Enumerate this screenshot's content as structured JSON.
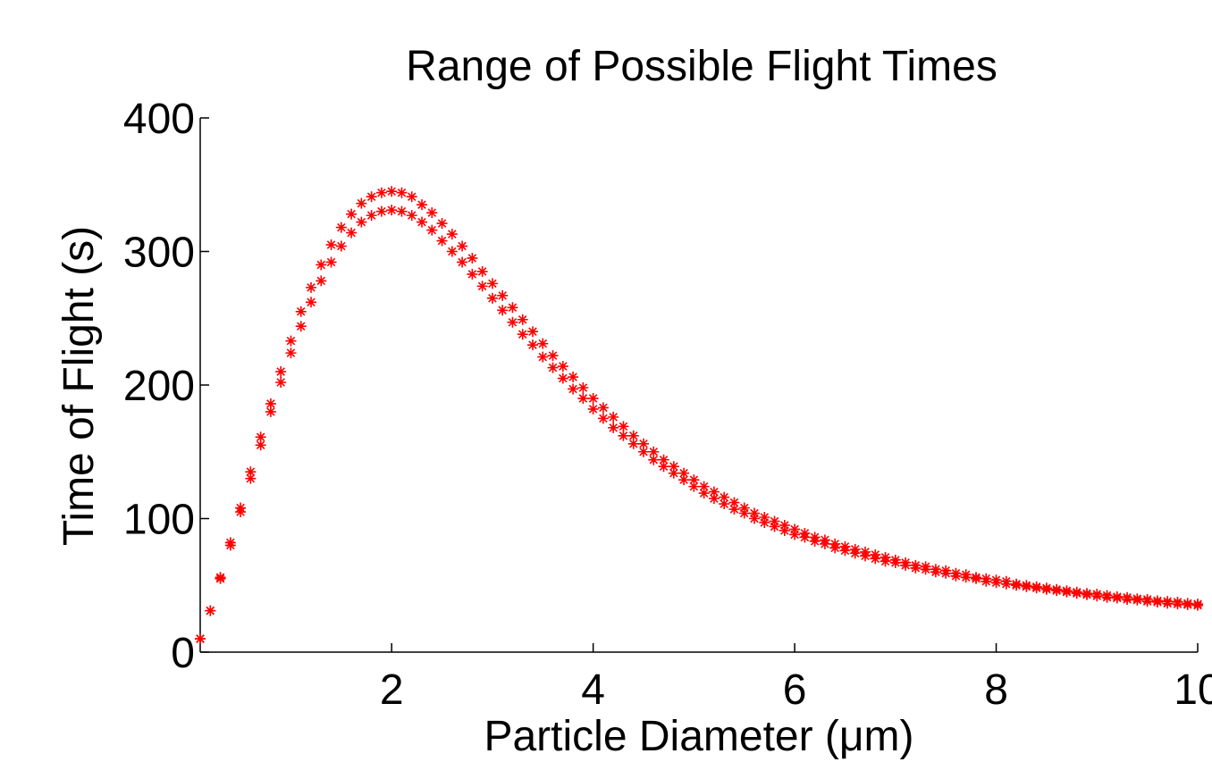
{
  "chart_data": {
    "type": "scatter",
    "title": "Range of Possible Flight Times",
    "xlabel": "Particle Diameter (μm)",
    "ylabel": "Time of Flight (s)",
    "xlim": [
      0.1,
      10
    ],
    "ylim": [
      0,
      400
    ],
    "xticks": [
      2,
      4,
      6,
      8,
      10
    ],
    "xtick_labels": [
      "2",
      "4",
      "6",
      "8",
      "10"
    ],
    "yticks": [
      0,
      100,
      200,
      300,
      400
    ],
    "ytick_labels": [
      "0",
      "100",
      "200",
      "300",
      "400"
    ],
    "grid": false,
    "marker": "asterisk",
    "marker_color": "#ff0000",
    "series": [
      {
        "x": [
          0.1,
          0.2,
          0.3,
          0.4,
          0.5,
          0.6,
          0.7,
          0.8,
          0.9,
          1.0,
          1.1,
          1.2,
          1.3,
          1.4,
          1.5,
          1.6,
          1.7,
          1.8,
          1.9,
          2.0,
          2.1,
          2.2,
          2.3,
          2.4,
          2.5,
          2.6,
          2.7,
          2.8,
          2.9,
          3.0,
          3.1,
          3.2,
          3.3,
          3.4,
          3.5,
          3.6,
          3.7,
          3.8,
          3.9,
          4.0,
          4.1,
          4.2,
          4.3,
          4.4,
          4.5,
          4.6,
          4.7,
          4.8,
          4.9,
          5.0,
          5.1,
          5.2,
          5.3,
          5.4,
          5.5,
          5.6,
          5.7,
          5.8,
          5.9,
          6.0,
          6.1,
          6.2,
          6.3,
          6.4,
          6.5,
          6.6,
          6.7,
          6.8,
          6.9,
          7.0,
          7.1,
          7.2,
          7.3,
          7.4,
          7.5,
          7.6,
          7.7,
          7.8,
          7.9,
          8.0,
          8.1,
          8.2,
          8.3,
          8.4,
          8.5,
          8.6,
          8.7,
          8.8,
          8.9,
          9.0,
          9.1,
          9.2,
          9.3,
          9.4,
          9.5,
          9.6,
          9.7,
          9.8,
          9.9,
          10.0
        ],
        "values": [
          10,
          31,
          56,
          82,
          108,
          135,
          161,
          186,
          210,
          233,
          255,
          273,
          290,
          305,
          318,
          328,
          336,
          341,
          344,
          345,
          344,
          341,
          335,
          329,
          321,
          313,
          304,
          295,
          285,
          276,
          267,
          258,
          249,
          240,
          231,
          222,
          214,
          206,
          198,
          190,
          183,
          176,
          169,
          162,
          156,
          150,
          144,
          139,
          134,
          129,
          124,
          120,
          116,
          112,
          108,
          104,
          101,
          98,
          95,
          92,
          89,
          86,
          84,
          81,
          79,
          77,
          75,
          73,
          71,
          69,
          67,
          65,
          64,
          62,
          61,
          59,
          58,
          56,
          55,
          54,
          53,
          51,
          50,
          49,
          48,
          47,
          46,
          45,
          44,
          43.5,
          42.5,
          41.5,
          41,
          40,
          39.5,
          38.5,
          38,
          37.5,
          36.5,
          36
        ]
      },
      {
        "x": [
          0.1,
          0.2,
          0.3,
          0.4,
          0.5,
          0.6,
          0.7,
          0.8,
          0.9,
          1.0,
          1.1,
          1.2,
          1.3,
          1.4,
          1.5,
          1.6,
          1.7,
          1.8,
          1.9,
          2.0,
          2.1,
          2.2,
          2.3,
          2.4,
          2.5,
          2.6,
          2.7,
          2.8,
          2.9,
          3.0,
          3.1,
          3.2,
          3.3,
          3.4,
          3.5,
          3.6,
          3.7,
          3.8,
          3.9,
          4.0,
          4.1,
          4.2,
          4.3,
          4.4,
          4.5,
          4.6,
          4.7,
          4.8,
          4.9,
          5.0,
          5.1,
          5.2,
          5.3,
          5.4,
          5.5,
          5.6,
          5.7,
          5.8,
          5.9,
          6.0,
          6.1,
          6.2,
          6.3,
          6.4,
          6.5,
          6.6,
          6.7,
          6.8,
          6.9,
          7.0,
          7.1,
          7.2,
          7.3,
          7.4,
          7.5,
          7.6,
          7.7,
          7.8,
          7.9,
          8.0,
          8.1,
          8.2,
          8.3,
          8.4,
          8.5,
          8.6,
          8.7,
          8.8,
          8.9,
          9.0,
          9.1,
          9.2,
          9.3,
          9.4,
          9.5,
          9.6,
          9.7,
          9.8,
          9.9,
          10.0
        ],
        "values": [
          10,
          31,
          55,
          80,
          105,
          130,
          155,
          180,
          202,
          224,
          244,
          262,
          278,
          292,
          304,
          314,
          322,
          327,
          330,
          331,
          330,
          327,
          322,
          316,
          308,
          300,
          292,
          283,
          274,
          265,
          256,
          247,
          238,
          230,
          221,
          213,
          205,
          197,
          190,
          182,
          175,
          168,
          162,
          156,
          150,
          144,
          139,
          134,
          129,
          124,
          119,
          115,
          111,
          107,
          104,
          100,
          97,
          94,
          91,
          88,
          86,
          83,
          81,
          78,
          76,
          74,
          72,
          70,
          68,
          67,
          65,
          63,
          62,
          60,
          59,
          57,
          56,
          55,
          53,
          52,
          51,
          50,
          49,
          48,
          47,
          46,
          45,
          44,
          43,
          42,
          41,
          40.5,
          39.5,
          39,
          38,
          37.5,
          36.5,
          36,
          35.5,
          35
        ]
      }
    ]
  }
}
